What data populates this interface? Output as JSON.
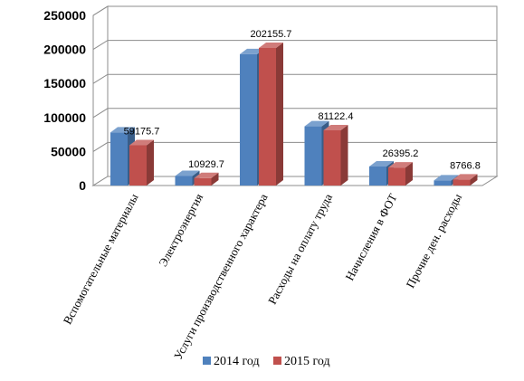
{
  "chart_data": {
    "type": "bar",
    "style": "3d-clustered-column",
    "categories": [
      "Вспомогательные материалы",
      "Электроэнергия",
      "Услуги производственного характера",
      "Расходы на оплату труда",
      "Начисления в ФОТ",
      "Прочие ден. расходы"
    ],
    "series": [
      {
        "name": "2014 год",
        "color": "#4F81BD",
        "values": [
          78000,
          14000,
          193000,
          87000,
          28000,
          7500
        ]
      },
      {
        "name": "2015 год",
        "color": "#C0504D",
        "values": [
          59175.7,
          10929.7,
          202155.7,
          81122.4,
          26395.2,
          8766.8
        ]
      }
    ],
    "data_labels": [
      "59175.7",
      "10929.7",
      "202155.7",
      "81122.4",
      "26395.2",
      "8766.8"
    ],
    "yticks": [
      "0",
      "50000",
      "100000",
      "150000",
      "200000",
      "250000"
    ],
    "ylim": [
      0,
      250000
    ],
    "grid": true,
    "legend_position": "bottom"
  }
}
